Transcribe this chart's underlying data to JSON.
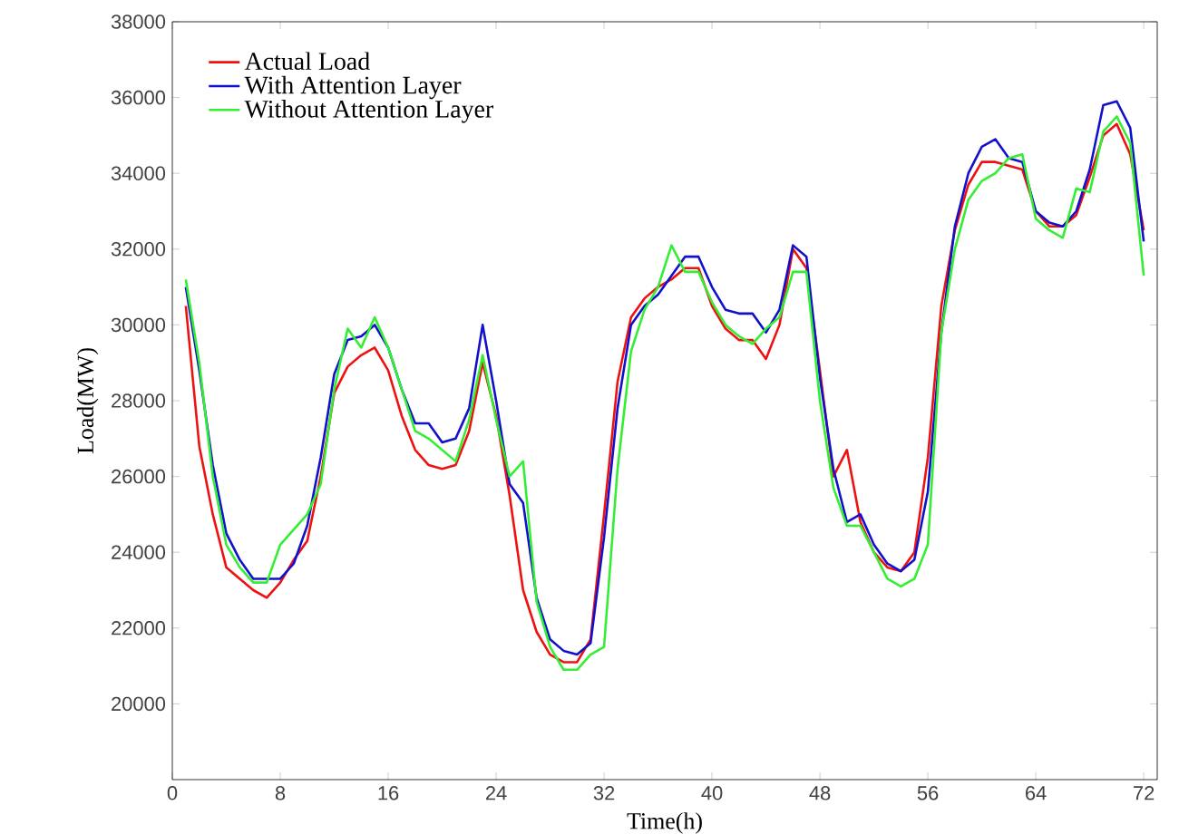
{
  "chart_data": {
    "type": "line",
    "xlabel": "Time(h)",
    "ylabel": "Load(MW)",
    "x": [
      1,
      2,
      3,
      4,
      5,
      6,
      7,
      8,
      9,
      10,
      11,
      12,
      13,
      14,
      15,
      16,
      17,
      18,
      19,
      20,
      21,
      22,
      23,
      24,
      25,
      26,
      27,
      28,
      29,
      30,
      31,
      32,
      33,
      34,
      35,
      36,
      37,
      38,
      39,
      40,
      41,
      42,
      43,
      44,
      45,
      46,
      47,
      48,
      49,
      50,
      51,
      52,
      53,
      54,
      55,
      56,
      57,
      58,
      59,
      60,
      61,
      62,
      63,
      64,
      65,
      66,
      67,
      68,
      69,
      70,
      71,
      72
    ],
    "series": [
      {
        "name": "Actual Load",
        "color": "#ee1111",
        "values": [
          30500,
          26800,
          25000,
          23600,
          23300,
          23000,
          22800,
          23200,
          23800,
          24300,
          26000,
          28200,
          28900,
          29200,
          29400,
          28800,
          27600,
          26700,
          26300,
          26200,
          26300,
          27200,
          29000,
          27600,
          25500,
          23000,
          21900,
          21300,
          21100,
          21100,
          21700,
          25000,
          28500,
          30200,
          30700,
          31000,
          31200,
          31500,
          31500,
          30500,
          29900,
          29600,
          29600,
          29100,
          30000,
          32000,
          31500,
          28800,
          26000,
          26700,
          24800,
          24000,
          23600,
          23500,
          24000,
          26500,
          30500,
          32500,
          33700,
          34300,
          34300,
          34200,
          34100,
          33000,
          32600,
          32600,
          32900,
          33900,
          35000,
          35300,
          34500,
          32500
        ]
      },
      {
        "name": "With Attention Layer",
        "color": "#1111cc",
        "values": [
          31000,
          28800,
          26300,
          24500,
          23800,
          23300,
          23300,
          23300,
          23700,
          24700,
          26500,
          28700,
          29600,
          29700,
          30000,
          29400,
          28300,
          27400,
          27400,
          26900,
          27000,
          27800,
          30000,
          28000,
          25800,
          25300,
          22800,
          21700,
          21400,
          21300,
          21600,
          24400,
          27800,
          30000,
          30500,
          30800,
          31300,
          31800,
          31800,
          31000,
          30400,
          30300,
          30300,
          29800,
          30400,
          32100,
          31800,
          28600,
          26200,
          24800,
          25000,
          24200,
          23700,
          23500,
          23800,
          25600,
          29800,
          32600,
          34000,
          34700,
          34900,
          34400,
          34300,
          33000,
          32700,
          32600,
          33000,
          34100,
          35800,
          35900,
          35200,
          32200
        ]
      },
      {
        "name": "Without Attention Layer",
        "color": "#33ee33",
        "values": [
          31200,
          29000,
          26000,
          24200,
          23600,
          23200,
          23200,
          24200,
          24600,
          25000,
          25800,
          28300,
          29900,
          29400,
          30200,
          29400,
          28300,
          27200,
          27000,
          26700,
          26400,
          27500,
          29200,
          27500,
          26000,
          26400,
          22700,
          21500,
          20900,
          20900,
          21300,
          21500,
          26200,
          29300,
          30400,
          31000,
          32100,
          31400,
          31400,
          30600,
          30000,
          29700,
          29500,
          29900,
          30200,
          31400,
          31400,
          28000,
          25700,
          24700,
          24700,
          24000,
          23300,
          23100,
          23300,
          24200,
          29800,
          32000,
          33300,
          33800,
          34000,
          34400,
          34500,
          32800,
          32500,
          32300,
          33600,
          33500,
          35100,
          35500,
          34800,
          31300
        ]
      }
    ],
    "xlim": [
      0,
      73
    ],
    "ylim": [
      18000,
      38000
    ],
    "xticks": [
      0,
      8,
      16,
      24,
      32,
      40,
      48,
      56,
      64,
      72
    ],
    "yticks": [
      20000,
      22000,
      24000,
      26000,
      28000,
      30000,
      32000,
      34000,
      36000,
      38000
    ],
    "legend": "top left",
    "grid": false,
    "line_style": "solid",
    "marker": "none"
  }
}
